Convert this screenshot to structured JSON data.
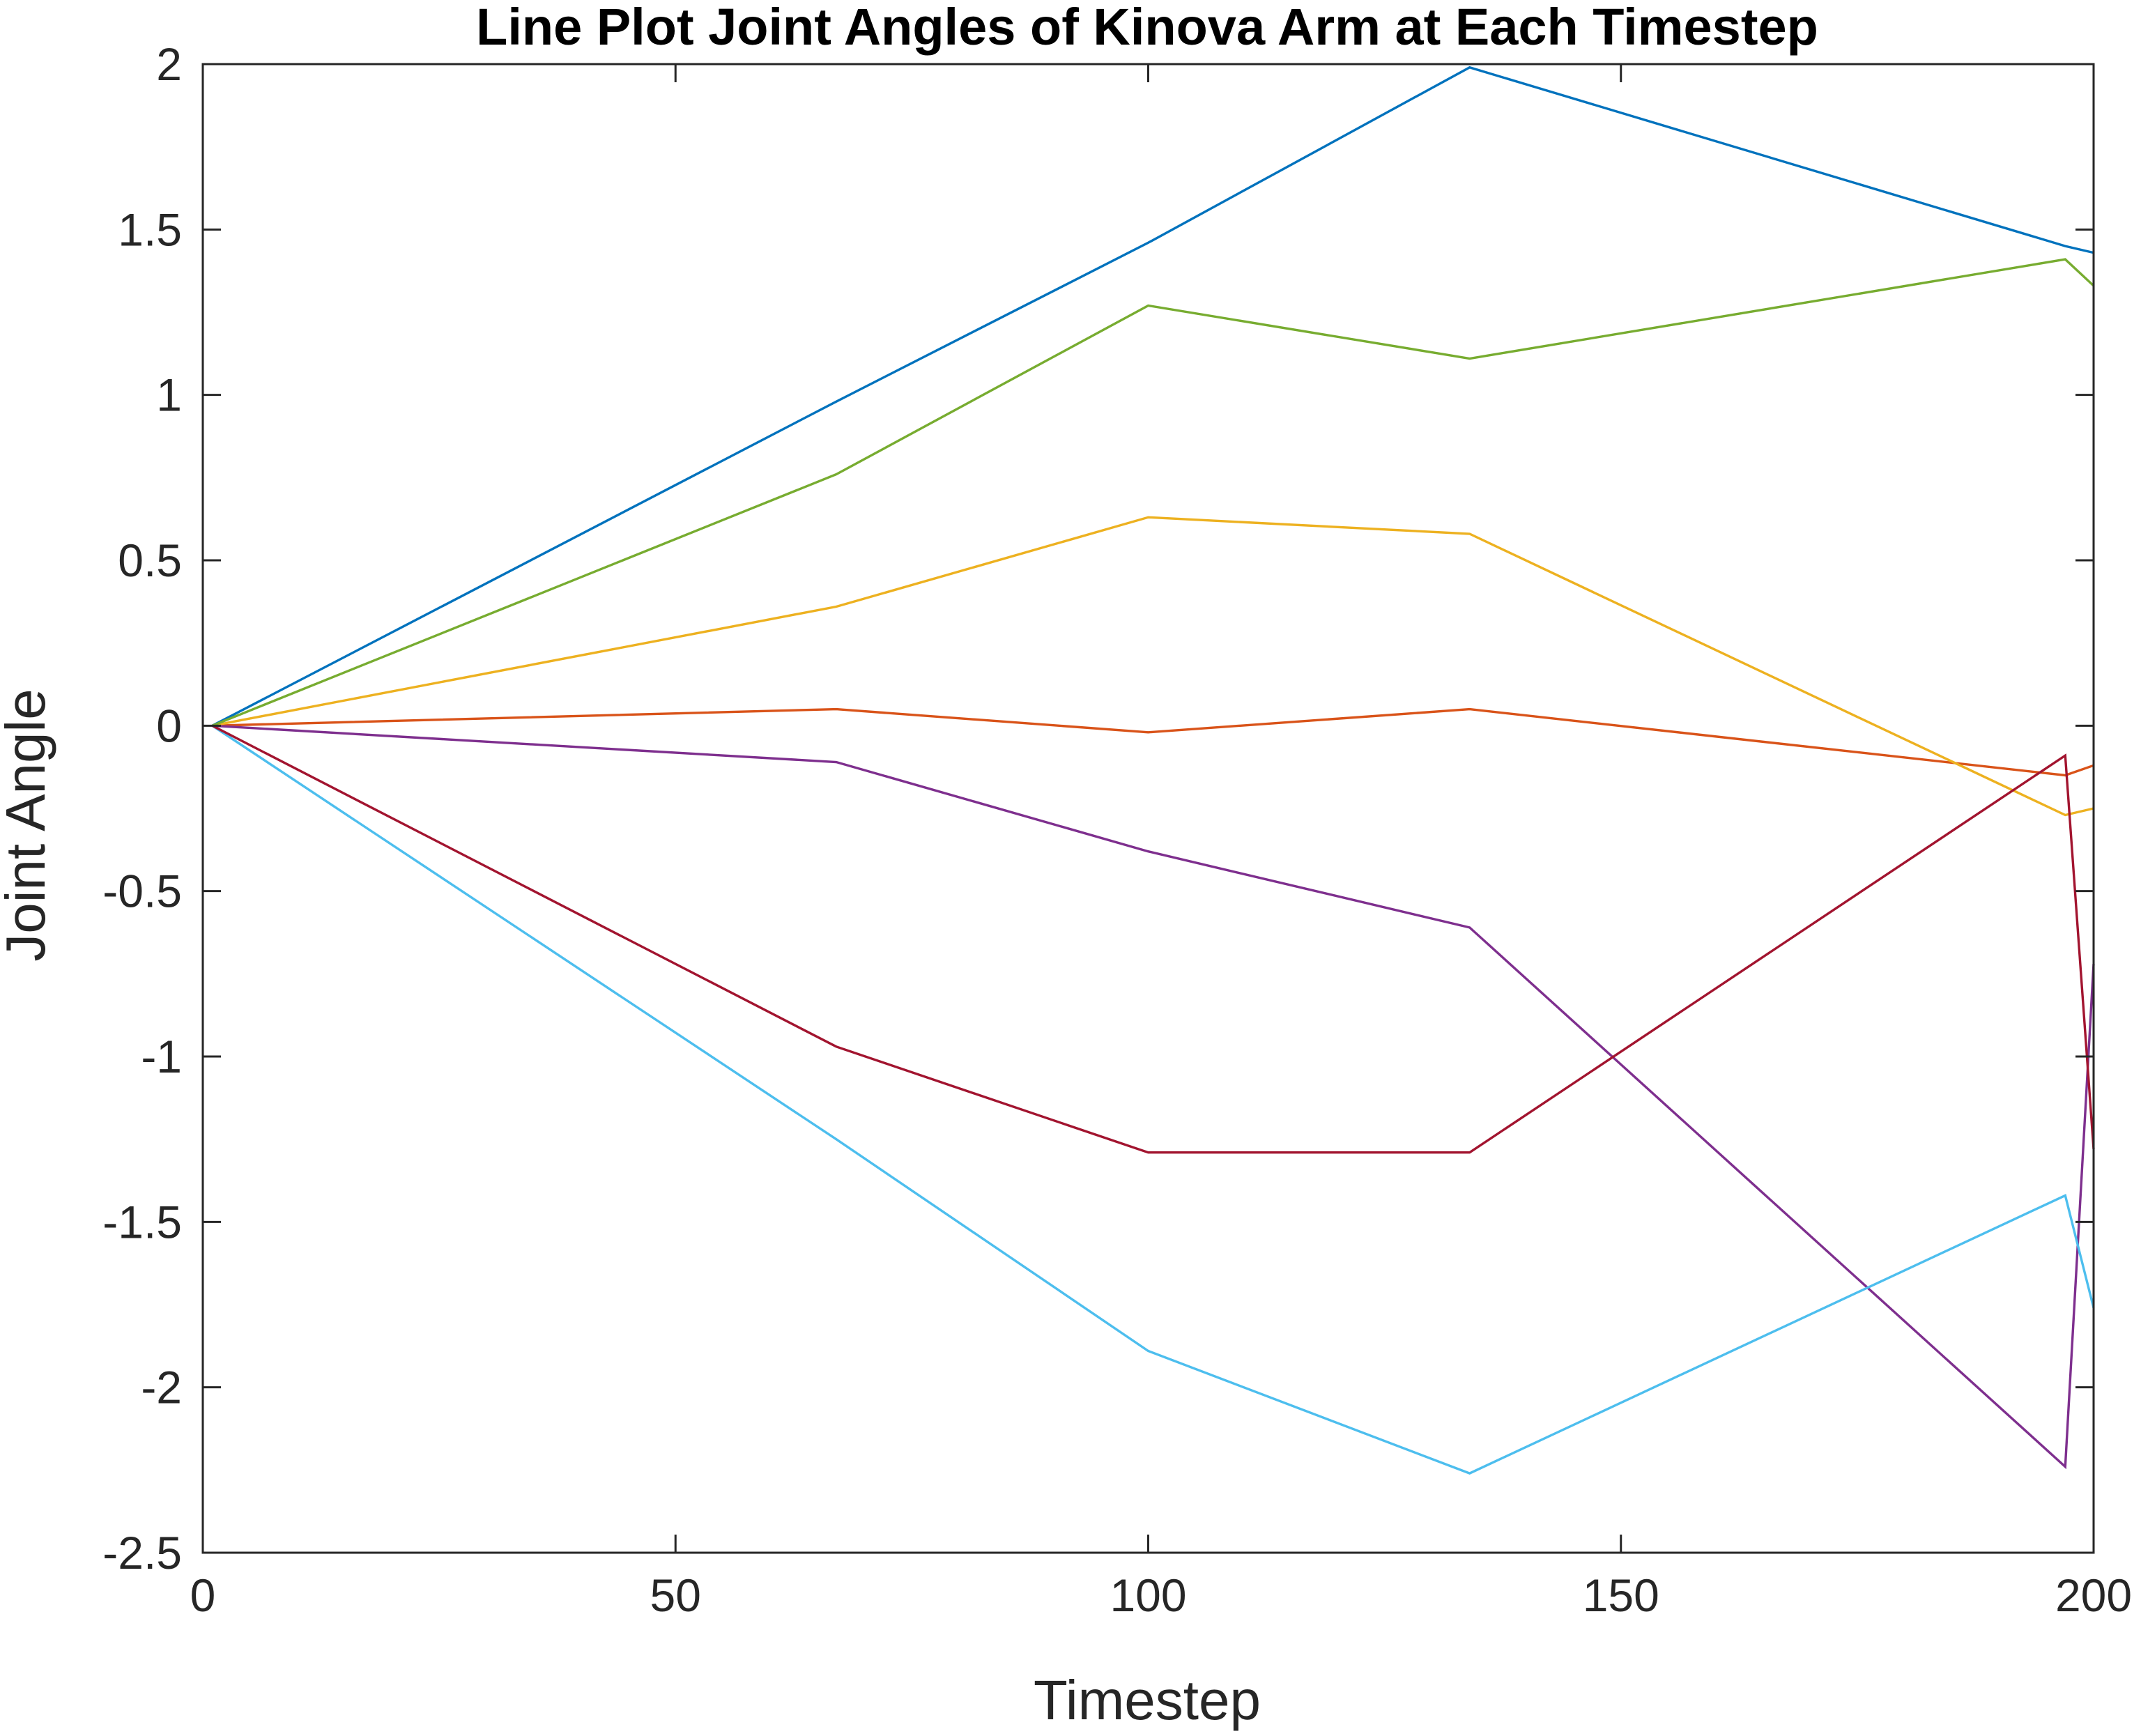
{
  "chart_data": {
    "type": "line",
    "title": "Line Plot Joint Angles of Kinova Arm at Each Timestep",
    "xlabel": "Timestep",
    "ylabel": "Joint Angle",
    "xlim": [
      0,
      200
    ],
    "ylim": [
      -2.5,
      2
    ],
    "xticks": [
      0,
      50,
      100,
      150,
      200
    ],
    "yticks": [
      2,
      1.5,
      1,
      0.5,
      0,
      -0.5,
      -1,
      -1.5,
      -2,
      -2.5
    ],
    "xtick_labels": [
      "0",
      "50",
      "100",
      "150",
      "200"
    ],
    "ytick_labels": [
      "2",
      "1.5",
      "1",
      "0.5",
      "0",
      "-0.5",
      "-1",
      "-1.5",
      "-2",
      "-2.5"
    ],
    "grid": false,
    "box": true,
    "legend": "none",
    "series": [
      {
        "color": "#0072BD",
        "x": [
          1,
          67,
          100,
          134,
          197,
          200
        ],
        "values": [
          0,
          0.98,
          1.46,
          1.99,
          1.45,
          1.43
        ]
      },
      {
        "color": "#D95319",
        "x": [
          1,
          67,
          100,
          134,
          197,
          200
        ],
        "values": [
          0,
          0.05,
          -0.02,
          0.05,
          -0.15,
          -0.12
        ]
      },
      {
        "color": "#EDB120",
        "x": [
          1,
          67,
          100,
          134,
          197,
          200
        ],
        "values": [
          0,
          0.36,
          0.63,
          0.58,
          -0.27,
          -0.25
        ]
      },
      {
        "color": "#7E2F8E",
        "x": [
          1,
          67,
          100,
          134,
          197,
          200
        ],
        "values": [
          0,
          -0.11,
          -0.38,
          -0.61,
          -2.24,
          -0.72
        ]
      },
      {
        "color": "#77AC30",
        "x": [
          1,
          67,
          100,
          134,
          197,
          200
        ],
        "values": [
          0,
          0.76,
          1.27,
          1.11,
          1.41,
          1.33
        ]
      },
      {
        "color": "#4DBEEE",
        "x": [
          1,
          67,
          100,
          134,
          197,
          200
        ],
        "values": [
          0,
          -1.25,
          -1.89,
          -2.26,
          -1.42,
          -1.76
        ]
      },
      {
        "color": "#A2142F",
        "x": [
          1,
          67,
          100,
          134,
          197,
          200
        ],
        "values": [
          0,
          -0.97,
          -1.29,
          -1.29,
          -0.09,
          -1.28
        ]
      }
    ]
  }
}
